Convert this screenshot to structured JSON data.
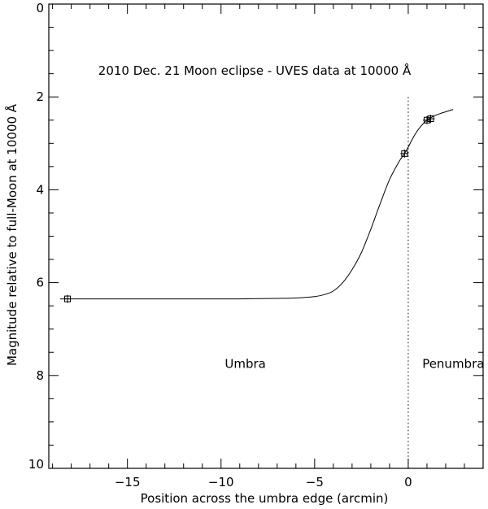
{
  "chart_data": {
    "type": "line",
    "title": "2010 Dec. 21 Moon eclipse - UVES data at 10000 Å",
    "xlabel": "Position across the umbra edge (arcmin)",
    "ylabel": "Magnitude relative to full-Moon at 10000 Å",
    "xlim": [
      -19.2,
      4.0
    ],
    "ylim": [
      10,
      0
    ],
    "y_inverted": true,
    "x_major_ticks": [
      -15,
      -10,
      -5,
      0
    ],
    "x_tick_labels": [
      "−15",
      "−10",
      "−5",
      "0"
    ],
    "x_minor_step": 1,
    "y_major_ticks": [
      0,
      2,
      4,
      6,
      8,
      10
    ],
    "y_tick_labels": [
      "0",
      "2",
      "4",
      "6",
      "8",
      "10"
    ],
    "y_minor_step": 0.5,
    "grid": false,
    "series": [
      {
        "type": "line",
        "x": [
          -18.6,
          -17,
          -15,
          -13,
          -11,
          -9,
          -7,
          -6,
          -5,
          -4.5,
          -4,
          -3.5,
          -3,
          -2.5,
          -2,
          -1.5,
          -1,
          -0.5,
          -0.2,
          0,
          0.3,
          0.6,
          1.0,
          1.5,
          2.0,
          2.4
        ],
        "y": [
          6.35,
          6.35,
          6.35,
          6.35,
          6.35,
          6.35,
          6.34,
          6.33,
          6.3,
          6.26,
          6.18,
          6.0,
          5.72,
          5.35,
          4.85,
          4.3,
          3.78,
          3.4,
          3.22,
          3.08,
          2.85,
          2.67,
          2.5,
          2.39,
          2.32,
          2.27
        ]
      },
      {
        "type": "scatter",
        "marker": "square-cross",
        "x": [
          -18.2,
          -0.2,
          1.0,
          1.2
        ],
        "y": [
          6.35,
          3.22,
          2.5,
          2.47
        ]
      }
    ],
    "vertical_lines": [
      {
        "x": 0,
        "style": "dotted",
        "y_from": 2,
        "y_to": 10
      }
    ],
    "annotations": [
      {
        "text": "Umbra",
        "x": -9.8,
        "y": 7.75
      },
      {
        "text": "Penumbra",
        "x": 0.75,
        "y": 7.75
      }
    ]
  }
}
